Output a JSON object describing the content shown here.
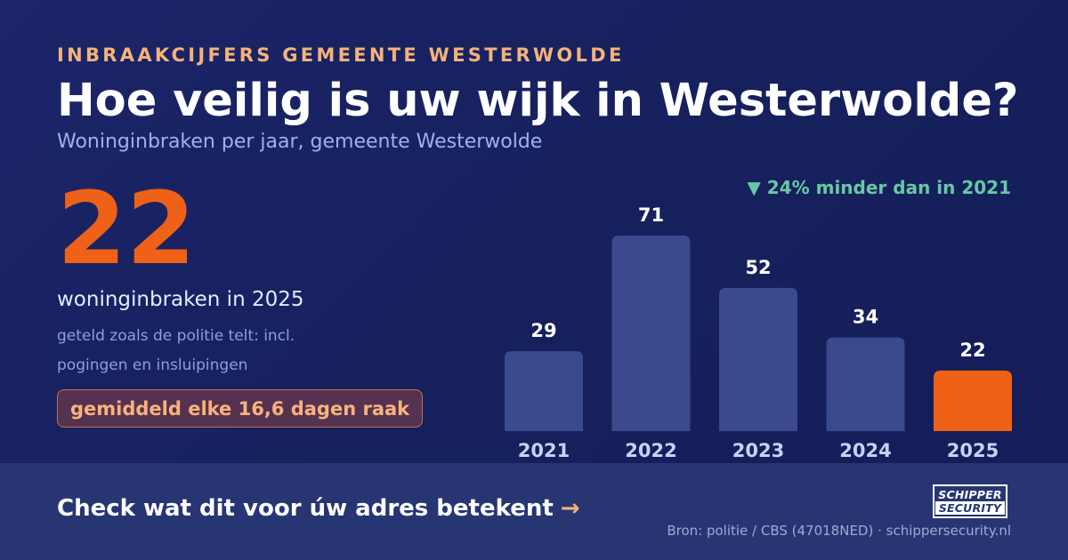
{
  "header": {
    "kicker": "INBRAAKCIJFERS GEMEENTE WESTERWOLDE",
    "title": "Hoe veilig is uw wijk in Westerwolde?",
    "subtitle": "Woninginbraken per jaar, gemeente Westerwolde"
  },
  "highlight": {
    "number": "22",
    "label": "woninginbraken in 2025",
    "note": "geteld zoals de politie telt: incl. pogingen en insluipingen",
    "pill": "gemiddeld elke 16,6 dagen raak"
  },
  "delta": "▼ 24% minder dan in 2021",
  "chart_data": {
    "type": "bar",
    "categories": [
      "2021",
      "2022",
      "2023",
      "2024",
      "2025"
    ],
    "values": [
      29,
      71,
      52,
      34,
      22
    ],
    "data_labels": [
      "29",
      "71",
      "52",
      "34",
      "22"
    ],
    "highlight_index": 4,
    "colors": {
      "default": "#3a4a8c",
      "highlight": "#ee6117",
      "value_text": "#ffffff",
      "tick_text": "#c7d2f5"
    },
    "ylim": [
      0,
      71
    ]
  },
  "footer": {
    "cta": "Check wat dit voor úw adres betekent",
    "cta_arrow": "→",
    "logo_line1": "SCHIPPER",
    "logo_line2": "SECURITY",
    "source": "Bron: politie / CBS (47018NED) · schippersecurity.nl"
  }
}
